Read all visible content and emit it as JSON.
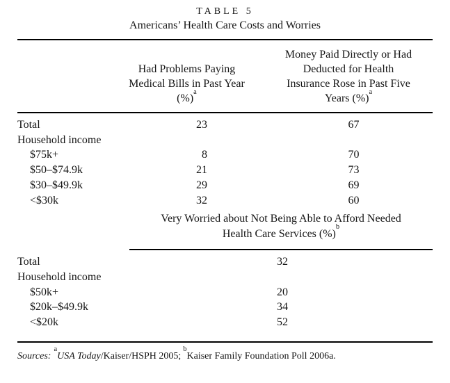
{
  "table": {
    "caption_label": "TABLE 5",
    "caption_title": "Americans’ Health Care Costs and Worries",
    "section1": {
      "col1_header": {
        "lines": [
          "Had Problems Paying",
          "Medical Bills in Past Year"
        ],
        "percent": "(%)",
        "sup": "a"
      },
      "col2_header": {
        "lines": [
          "Money Paid Directly or Had",
          "Deducted for Health",
          "Insurance Rose in Past Five"
        ],
        "percent": "Years (%)",
        "sup": "a"
      },
      "rows": [
        {
          "label": "Total",
          "col1": "23",
          "col2": "67"
        },
        {
          "label": "Household income",
          "col1": "",
          "col2": ""
        },
        {
          "label": "$75k+",
          "col1": "8",
          "col2": "70"
        },
        {
          "label": "$50–$74.9k",
          "col1": "21",
          "col2": "73"
        },
        {
          "label": "$30–$49.9k",
          "col1": "29",
          "col2": "69"
        },
        {
          "label": "<$30k",
          "col1": "32",
          "col2": "60"
        }
      ]
    },
    "section2": {
      "header": {
        "line1": "Very Worried about Not Being Able to Afford Needed",
        "line2": "Health Care Services (%)",
        "sup": "b"
      },
      "rows": [
        {
          "label": "Total",
          "value": "32"
        },
        {
          "label": "Household income",
          "value": ""
        },
        {
          "label": "$50k+",
          "value": "20"
        },
        {
          "label": "$20k–$49.9k",
          "value": "34"
        },
        {
          "label": "<$20k",
          "value": "52"
        }
      ]
    },
    "sources": {
      "prefix": "Sources:",
      "sup_a": "a",
      "source_a_italic": "USA Today",
      "source_a_rest": "/Kaiser/HSPH 2005;",
      "sup_b": "b",
      "source_b": "Kaiser Family Foundation Poll 2006a."
    }
  }
}
